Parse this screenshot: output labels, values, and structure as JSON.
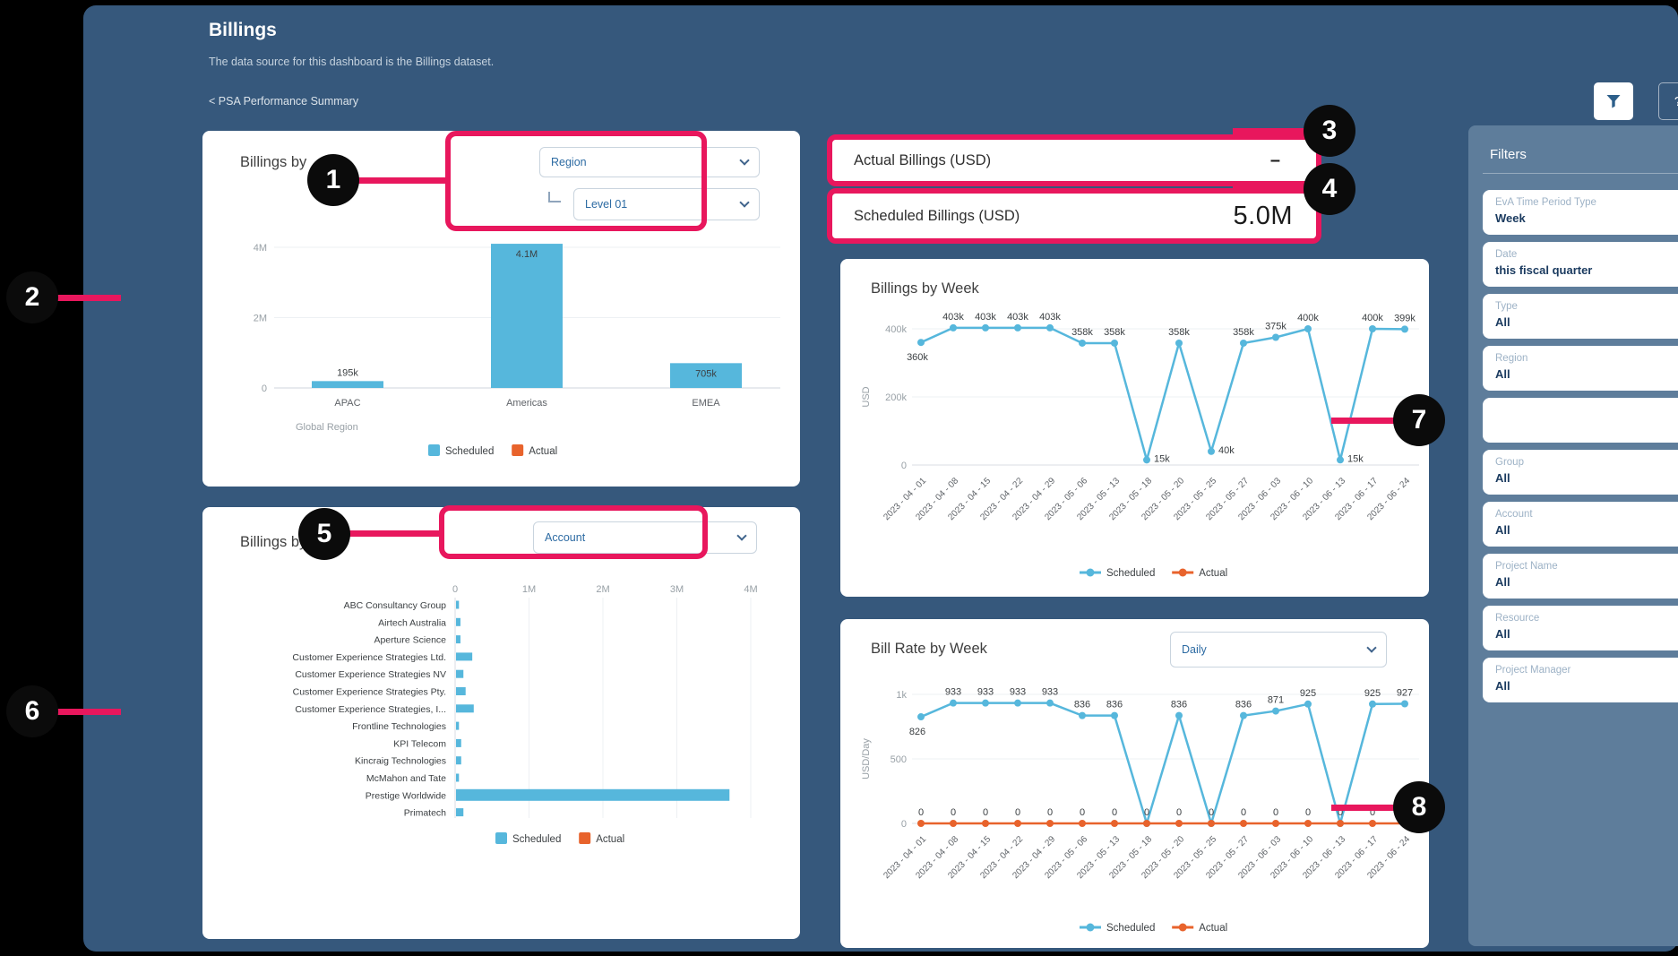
{
  "colors": {
    "scheduled": "#56b7dc",
    "actual": "#e8632c",
    "highlight": "#e8175d",
    "app_bg": "#36587c",
    "sidebar_bg": "#5e7d9b"
  },
  "header": {
    "title": "Billings",
    "subtitle": "The data source for this dashboard is the Billings dataset.",
    "back_link": "< PSA Performance Summary",
    "help_label": "?"
  },
  "callouts": [
    "1",
    "2",
    "3",
    "4",
    "5",
    "6",
    "7",
    "8"
  ],
  "kpis": {
    "actual": {
      "label": "Actual Billings (USD)",
      "value": "–"
    },
    "scheduled": {
      "label": "Scheduled Billings (USD)",
      "value": "5.0M"
    }
  },
  "billings_by_region": {
    "title": "Billings by",
    "dimension_dropdown": "Region",
    "level_dropdown": "Level 01",
    "chart_data": {
      "type": "bar",
      "categories": [
        "APAC",
        "Americas",
        "EMEA"
      ],
      "series": [
        {
          "name": "Scheduled",
          "values": [
            0.195,
            4.1,
            0.705
          ],
          "labels": [
            "195k",
            "4.1M",
            "705k"
          ]
        }
      ],
      "xlabel": "Global Region",
      "ylim": [
        0,
        4
      ],
      "yticks": [
        {
          "v": 0,
          "label": "0"
        },
        {
          "v": 2,
          "label": "2M"
        },
        {
          "v": 4,
          "label": "4M"
        }
      ],
      "legend": [
        "Scheduled",
        "Actual"
      ]
    }
  },
  "billings_by_week": {
    "title": "Billings by Week",
    "chart_data": {
      "type": "line",
      "x": [
        "2023 - 04 - 01",
        "2023 - 04 - 08",
        "2023 - 04 - 15",
        "2023 - 04 - 22",
        "2023 - 04 - 29",
        "2023 - 05 - 06",
        "2023 - 05 - 13",
        "2023 - 05 - 18",
        "2023 - 05 - 20",
        "2023 - 05 - 25",
        "2023 - 05 - 27",
        "2023 - 06 - 03",
        "2023 - 06 - 10",
        "2023 - 06 - 13",
        "2023 - 06 - 17",
        "2023 - 06 - 24"
      ],
      "ylabel": "USD",
      "ylim": [
        0,
        400
      ],
      "yticks": [
        {
          "v": 0,
          "label": "0"
        },
        {
          "v": 200,
          "label": "200k"
        },
        {
          "v": 400,
          "label": "400k"
        }
      ],
      "series": [
        {
          "name": "Scheduled",
          "values": [
            360,
            403,
            403,
            403,
            403,
            358,
            358,
            15,
            358,
            40,
            358,
            375,
            400,
            15,
            400,
            399
          ],
          "labels": [
            "360k",
            "403k",
            "403k",
            "403k",
            "403k",
            "358k",
            "358k",
            "15k",
            "358k",
            "40k",
            "358k",
            "375k",
            "400k",
            "15k",
            "400k",
            "399k"
          ]
        }
      ],
      "legend": [
        "Scheduled",
        "Actual"
      ]
    }
  },
  "bill_rate_by_week": {
    "title": "Bill Rate by Week",
    "dropdown": "Daily",
    "chart_data": {
      "type": "line",
      "x": [
        "2023 - 04 - 01",
        "2023 - 04 - 08",
        "2023 - 04 - 15",
        "2023 - 04 - 22",
        "2023 - 04 - 29",
        "2023 - 05 - 06",
        "2023 - 05 - 13",
        "2023 - 05 - 18",
        "2023 - 05 - 20",
        "2023 - 05 - 25",
        "2023 - 05 - 27",
        "2023 - 06 - 03",
        "2023 - 06 - 10",
        "2023 - 06 - 13",
        "2023 - 06 - 17",
        "2023 - 06 - 24"
      ],
      "ylabel": "USD/Day",
      "ylim": [
        0,
        1000
      ],
      "yticks": [
        {
          "v": 0,
          "label": "0"
        },
        {
          "v": 500,
          "label": "500"
        },
        {
          "v": 1000,
          "label": "1k"
        }
      ],
      "series": [
        {
          "name": "Scheduled",
          "values": [
            826,
            933,
            933,
            933,
            933,
            836,
            836,
            0,
            836,
            0,
            836,
            871,
            925,
            0,
            925,
            927
          ],
          "labels": [
            "826",
            "933",
            "933",
            "933",
            "933",
            "836",
            "836",
            null,
            "836",
            null,
            "836",
            "871",
            "925",
            null,
            "925",
            "927"
          ]
        },
        {
          "name": "Actual",
          "values": [
            0,
            0,
            0,
            0,
            0,
            0,
            0,
            0,
            0,
            0,
            0,
            0,
            0,
            0,
            0,
            0
          ],
          "labels": [
            "0",
            "0",
            "0",
            "0",
            "0",
            "0",
            "0",
            "0",
            "0",
            "0",
            "0",
            "0",
            "0",
            "0",
            "0",
            "0"
          ]
        }
      ],
      "legend": [
        "Scheduled",
        "Actual"
      ]
    }
  },
  "billings_by_account": {
    "title": "Billings by",
    "dimension_dropdown": "Account",
    "chart_data": {
      "type": "hbar",
      "categories": [
        "ABC Consultancy Group",
        "Airtech Australia",
        "Aperture Science",
        "Customer Experience Strategies Ltd.",
        "Customer Experience Strategies NV",
        "Customer Experience Strategies Pty.",
        "Customer Experience Strategies, I...",
        "Frontline Technologies",
        "KPI Telecom",
        "Kincraig Technologies",
        "McMahon and Tate",
        "Prestige Worldwide",
        "Primatech"
      ],
      "series": [
        {
          "name": "Scheduled",
          "values": [
            0.04,
            0.06,
            0.06,
            0.22,
            0.1,
            0.13,
            0.24,
            0.04,
            0.07,
            0.07,
            0.04,
            3.7,
            0.1
          ]
        }
      ],
      "xlim": [
        0,
        4
      ],
      "xticks": [
        {
          "v": 0,
          "label": "0"
        },
        {
          "v": 1,
          "label": "1M"
        },
        {
          "v": 2,
          "label": "2M"
        },
        {
          "v": 3,
          "label": "3M"
        },
        {
          "v": 4,
          "label": "4M"
        }
      ],
      "legend": [
        "Scheduled",
        "Actual"
      ]
    }
  },
  "filters": {
    "heading": "Filters",
    "items": [
      {
        "label": "EvA Time Period Type",
        "value": "Week"
      },
      {
        "label": "Date",
        "value": "this fiscal quarter"
      },
      {
        "label": "Type",
        "value": "All"
      },
      {
        "label": "Region",
        "value": "All"
      },
      {
        "label": "",
        "value": ""
      },
      {
        "label": "Group",
        "value": "All"
      },
      {
        "label": "Account",
        "value": "All"
      },
      {
        "label": "Project Name",
        "value": "All"
      },
      {
        "label": "Resource",
        "value": "All"
      },
      {
        "label": "Project Manager",
        "value": "All"
      }
    ]
  }
}
